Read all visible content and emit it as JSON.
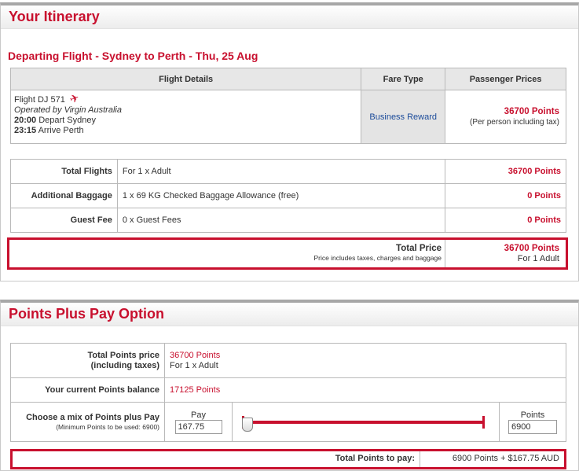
{
  "itinerary": {
    "title": "Your Itinerary",
    "departing_heading": "Departing Flight - Sydney to Perth - Thu, 25 Aug",
    "columns": [
      "Flight Details",
      "Fare Type",
      "Passenger Prices"
    ],
    "flight": {
      "number": "Flight DJ 571",
      "operated_by": "Operated by Virgin Australia",
      "depart_time": "20:00",
      "depart_text": "Depart Sydney",
      "arrive_time": "23:15",
      "arrive_text": "Arrive Perth",
      "fare_type": "Business Reward",
      "price": "36700 Points",
      "price_note": "(Per person including tax)"
    },
    "summary": [
      {
        "label": "Total Flights",
        "detail": "For 1 x Adult",
        "value": "36700 Points"
      },
      {
        "label": "Additional Baggage",
        "detail": "1 x 69 KG Checked Baggage Allowance (free)",
        "value": "0 Points"
      },
      {
        "label": "Guest Fee",
        "detail": "0 x Guest Fees",
        "value": "0 Points"
      }
    ],
    "total": {
      "label": "Total Price",
      "note": "Price includes taxes, charges and baggage",
      "value": "36700 Points",
      "value_note": "For 1 Adult"
    }
  },
  "points_plus_pay": {
    "title": "Points Plus Pay Option",
    "total_points_label_1": "Total Points price",
    "total_points_label_2": "(including taxes)",
    "total_points_value": "36700 Points",
    "total_points_note": "For 1 x Adult",
    "balance_label": "Your current Points balance",
    "balance_value": "17125 Points",
    "mix_label": "Choose a mix of Points plus Pay",
    "mix_note": "(Minimum Points to be used: 6900)",
    "pay_label": "Pay",
    "pay_value": "167.75",
    "points_label": "Points",
    "points_value": "6900",
    "slider_position": 0,
    "total_to_pay_label": "Total Points to pay:",
    "total_to_pay_value": "6900 Points + $167.75 AUD"
  },
  "colors": {
    "accent": "#c8102e",
    "link": "#1b4b9a"
  }
}
